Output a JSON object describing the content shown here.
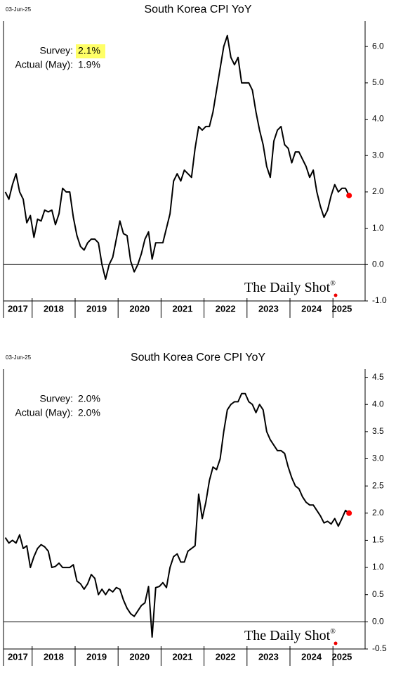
{
  "chart_data": [
    {
      "type": "line",
      "title": "South Korea CPI YoY",
      "date": "03-Jun-25",
      "annotations": {
        "survey_label": "Survey:",
        "survey_value": "2.1%",
        "actual_label": "Actual (May):",
        "actual_value": "1.9%"
      },
      "highlight": "#ffff66",
      "watermark": "The Daily Shot",
      "watermark_mark": "®",
      "categories": [
        "2017",
        "2018",
        "2019",
        "2020",
        "2021",
        "2022",
        "2023",
        "2024",
        "2025"
      ],
      "x": [
        "2017-05",
        "2017-06",
        "2017-07",
        "2017-08",
        "2017-09",
        "2017-10",
        "2017-11",
        "2017-12",
        "2018-01",
        "2018-02",
        "2018-03",
        "2018-04",
        "2018-05",
        "2018-06",
        "2018-07",
        "2018-08",
        "2018-09",
        "2018-10",
        "2018-11",
        "2018-12",
        "2019-01",
        "2019-02",
        "2019-03",
        "2019-04",
        "2019-05",
        "2019-06",
        "2019-07",
        "2019-08",
        "2019-09",
        "2019-10",
        "2019-11",
        "2019-12",
        "2020-01",
        "2020-02",
        "2020-03",
        "2020-04",
        "2020-05",
        "2020-06",
        "2020-07",
        "2020-08",
        "2020-09",
        "2020-10",
        "2020-11",
        "2020-12",
        "2021-01",
        "2021-02",
        "2021-03",
        "2021-04",
        "2021-05",
        "2021-06",
        "2021-07",
        "2021-08",
        "2021-09",
        "2021-10",
        "2021-11",
        "2021-12",
        "2022-01",
        "2022-02",
        "2022-03",
        "2022-04",
        "2022-05",
        "2022-06",
        "2022-07",
        "2022-08",
        "2022-09",
        "2022-10",
        "2022-11",
        "2022-12",
        "2023-01",
        "2023-02",
        "2023-03",
        "2023-04",
        "2023-05",
        "2023-06",
        "2023-07",
        "2023-08",
        "2023-09",
        "2023-10",
        "2023-11",
        "2023-12",
        "2024-01",
        "2024-02",
        "2024-03",
        "2024-04",
        "2024-05",
        "2024-06",
        "2024-07",
        "2024-08",
        "2024-09",
        "2024-10",
        "2024-11",
        "2024-12",
        "2025-01",
        "2025-02",
        "2025-03",
        "2025-04",
        "2025-05"
      ],
      "series": [
        {
          "color": "#000000",
          "values": [
            2.0,
            1.8,
            2.2,
            2.5,
            2.0,
            1.8,
            1.15,
            1.35,
            0.75,
            1.25,
            1.2,
            1.5,
            1.45,
            1.5,
            1.1,
            1.4,
            2.1,
            2.0,
            2.0,
            1.3,
            0.8,
            0.5,
            0.4,
            0.6,
            0.7,
            0.7,
            0.6,
            0.0,
            -0.4,
            0.0,
            0.2,
            0.7,
            1.2,
            0.85,
            0.8,
            0.1,
            -0.2,
            0.0,
            0.3,
            0.7,
            0.9,
            0.15,
            0.6,
            0.6,
            0.6,
            1.0,
            1.4,
            2.3,
            2.5,
            2.3,
            2.6,
            2.5,
            2.4,
            3.2,
            3.8,
            3.7,
            3.8,
            3.8,
            4.2,
            4.8,
            5.4,
            6.0,
            6.3,
            5.7,
            5.5,
            5.7,
            5.0,
            5.0,
            5.0,
            4.8,
            4.2,
            3.7,
            3.3,
            2.7,
            2.4,
            3.4,
            3.7,
            3.8,
            3.3,
            3.2,
            2.8,
            3.1,
            3.1,
            2.9,
            2.7,
            2.4,
            2.6,
            2.0,
            1.6,
            1.3,
            1.5,
            1.9,
            2.2,
            2.0,
            2.1,
            2.1,
            1.9
          ]
        }
      ],
      "end_marker_color": "#ff0000",
      "zero_line": true,
      "ylim": [
        -1.0,
        6.7
      ],
      "yticks": [
        {
          "value": -1,
          "label": "-1.0"
        },
        {
          "value": 0,
          "label": "0.0"
        },
        {
          "value": 1,
          "label": "1.0"
        },
        {
          "value": 2,
          "label": "2.0"
        },
        {
          "value": 3,
          "label": "3.0"
        },
        {
          "value": 4,
          "label": "4.0"
        },
        {
          "value": 5,
          "label": "5.0"
        },
        {
          "value": 6,
          "label": "6.0"
        }
      ]
    },
    {
      "type": "line",
      "title": "South Korea Core CPI YoY",
      "date": "03-Jun-25",
      "annotations": {
        "survey_label": "Survey:",
        "survey_value": "2.0%",
        "actual_label": "Actual (May):",
        "actual_value": "2.0%"
      },
      "watermark": "The Daily Shot",
      "watermark_mark": "®",
      "categories": [
        "2017",
        "2018",
        "2019",
        "2020",
        "2021",
        "2022",
        "2023",
        "2024",
        "2025"
      ],
      "x": [
        "2017-05",
        "2017-06",
        "2017-07",
        "2017-08",
        "2017-09",
        "2017-10",
        "2017-11",
        "2017-12",
        "2018-01",
        "2018-02",
        "2018-03",
        "2018-04",
        "2018-05",
        "2018-06",
        "2018-07",
        "2018-08",
        "2018-09",
        "2018-10",
        "2018-11",
        "2018-12",
        "2019-01",
        "2019-02",
        "2019-03",
        "2019-04",
        "2019-05",
        "2019-06",
        "2019-07",
        "2019-08",
        "2019-09",
        "2019-10",
        "2019-11",
        "2019-12",
        "2020-01",
        "2020-02",
        "2020-03",
        "2020-04",
        "2020-05",
        "2020-06",
        "2020-07",
        "2020-08",
        "2020-09",
        "2020-10",
        "2020-11",
        "2020-12",
        "2021-01",
        "2021-02",
        "2021-03",
        "2021-04",
        "2021-05",
        "2021-06",
        "2021-07",
        "2021-08",
        "2021-09",
        "2021-10",
        "2021-11",
        "2021-12",
        "2022-01",
        "2022-02",
        "2022-03",
        "2022-04",
        "2022-05",
        "2022-06",
        "2022-07",
        "2022-08",
        "2022-09",
        "2022-10",
        "2022-11",
        "2022-12",
        "2023-01",
        "2023-02",
        "2023-03",
        "2023-04",
        "2023-05",
        "2023-06",
        "2023-07",
        "2023-08",
        "2023-09",
        "2023-10",
        "2023-11",
        "2023-12",
        "2024-01",
        "2024-02",
        "2024-03",
        "2024-04",
        "2024-05",
        "2024-06",
        "2024-07",
        "2024-08",
        "2024-09",
        "2024-10",
        "2024-11",
        "2024-12",
        "2025-01",
        "2025-02",
        "2025-03",
        "2025-04",
        "2025-05"
      ],
      "series": [
        {
          "color": "#000000",
          "values": [
            1.55,
            1.45,
            1.5,
            1.45,
            1.6,
            1.35,
            1.4,
            1.0,
            1.2,
            1.35,
            1.42,
            1.38,
            1.3,
            1.0,
            1.02,
            1.08,
            1.0,
            1.0,
            1.0,
            1.05,
            0.75,
            0.7,
            0.6,
            0.7,
            0.87,
            0.8,
            0.5,
            0.6,
            0.5,
            0.6,
            0.55,
            0.63,
            0.6,
            0.4,
            0.25,
            0.15,
            0.1,
            0.2,
            0.3,
            0.35,
            0.65,
            -0.28,
            0.63,
            0.65,
            0.72,
            0.63,
            1.0,
            1.2,
            1.25,
            1.1,
            1.1,
            1.3,
            1.35,
            1.4,
            2.35,
            1.9,
            2.2,
            2.6,
            2.85,
            2.8,
            3.0,
            3.5,
            3.9,
            4.0,
            4.05,
            4.05,
            4.2,
            4.2,
            4.05,
            4.0,
            3.85,
            4.0,
            3.9,
            3.5,
            3.35,
            3.25,
            3.15,
            3.15,
            3.1,
            2.85,
            2.65,
            2.5,
            2.45,
            2.3,
            2.2,
            2.15,
            2.15,
            2.05,
            1.95,
            1.82,
            1.85,
            1.8,
            1.9,
            1.76,
            1.9,
            2.05,
            2.0
          ]
        }
      ],
      "end_marker_color": "#ff0000",
      "zero_line": true,
      "ylim": [
        -0.5,
        4.65
      ],
      "yticks": [
        -0.5,
        {
          "value": 0,
          "label": "0.0"
        },
        0.5,
        {
          "value": 1,
          "label": "1.0"
        },
        1.5,
        {
          "value": 2,
          "label": "2.0"
        },
        2.5,
        {
          "value": 3,
          "label": "3.0"
        },
        3.5,
        {
          "value": 4,
          "label": "4.0"
        },
        4.5
      ]
    }
  ]
}
